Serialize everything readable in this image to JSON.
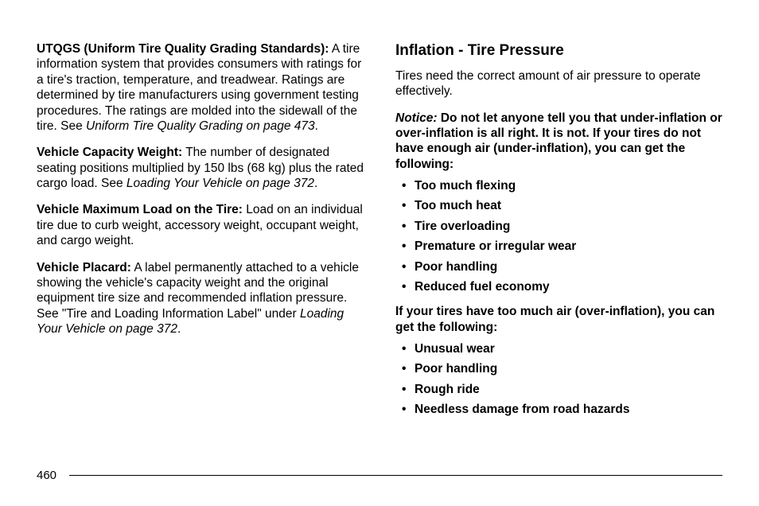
{
  "left": {
    "utqgs": {
      "term": "UTQGS (Uniform Tire Quality Grading Standards):",
      "body1": "  A tire information system that provides consumers with ratings for a tire's traction, temperature, and treadwear. Ratings are determined by tire manufacturers using government testing procedures. The ratings are molded into the sidewall of the tire. See ",
      "ref": "Uniform Tire Quality Grading on page 473",
      "period": "."
    },
    "vcw": {
      "term": "Vehicle Capacity Weight:",
      "body1": "  The number of designated seating positions multiplied by 150 lbs (68 kg) plus the rated cargo load. See ",
      "ref": "Loading Your Vehicle on page 372",
      "period": "."
    },
    "vmlt": {
      "term": "Vehicle Maximum Load on the Tire:",
      "body1": "  Load on an individual tire due to curb weight, accessory weight, occupant weight, and cargo weight."
    },
    "vp": {
      "term": "Vehicle Placard:",
      "body1": "  A label permanently attached to a vehicle showing the vehicle's capacity weight and the original equipment tire size and recommended inflation pressure. See \"Tire and Loading Information Label\" under ",
      "ref": "Loading Your Vehicle on page 372",
      "period": "."
    }
  },
  "right": {
    "heading": "Inflation - Tire Pressure",
    "intro": "Tires need the correct amount of air pressure to operate effectively.",
    "notice_lead": "Notice:",
    "notice_body": "   Do not let anyone tell you that under-inflation or over-inflation is all right. It is not. If your tires do not have enough air (under-inflation), you can get the following:",
    "under_list": [
      "Too much flexing",
      "Too much heat",
      "Tire overloading",
      "Premature or irregular wear",
      "Poor handling",
      "Reduced fuel economy"
    ],
    "over_intro": "If your tires have too much air (over-inflation), you can get the following:",
    "over_list": [
      "Unusual wear",
      "Poor handling",
      "Rough ride",
      "Needless damage from road hazards"
    ]
  },
  "page_number": "460"
}
